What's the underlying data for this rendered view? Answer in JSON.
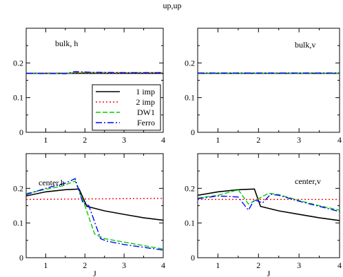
{
  "figure": {
    "title": "up,up"
  },
  "chart_data": [
    {
      "type": "line",
      "annotation": "bulk, h",
      "xlabel": "",
      "ylabel": "",
      "xlim": [
        0.5,
        4
      ],
      "ylim": [
        0,
        0.3
      ],
      "xticks": [
        1,
        2,
        3,
        4
      ],
      "yticks": [
        0,
        0.1,
        0.2
      ],
      "legend": {
        "placement": "lower-right",
        "entries": [
          "1 imp",
          "2 imp",
          "DW1",
          "Ferro"
        ]
      },
      "series": [
        {
          "name": "1 imp",
          "color": "#000000",
          "dash": "solid",
          "x": [
            0.5,
            4.0
          ],
          "y": [
            0.17,
            0.17
          ]
        },
        {
          "name": "2 imp",
          "color": "#ff0000",
          "dash": "dotted",
          "x": [
            0.5,
            4.0
          ],
          "y": [
            0.17,
            0.17
          ]
        },
        {
          "name": "DW1",
          "color": "#00cc00",
          "dash": "dashed",
          "x": [
            0.5,
            1.5,
            1.8,
            2.2,
            3.0,
            4.0
          ],
          "y": [
            0.17,
            0.169,
            0.173,
            0.172,
            0.172,
            0.172
          ]
        },
        {
          "name": "Ferro",
          "color": "#0000ff",
          "dash": "dashdot",
          "x": [
            0.5,
            1.5,
            1.75,
            2.2,
            3.0,
            4.0
          ],
          "y": [
            0.17,
            0.169,
            0.175,
            0.173,
            0.172,
            0.172
          ]
        }
      ]
    },
    {
      "type": "line",
      "annotation": "bulk,v",
      "xlabel": "",
      "ylabel": "",
      "xlim": [
        0.5,
        4
      ],
      "ylim": [
        0,
        0.3
      ],
      "xticks": [
        1,
        2,
        3,
        4
      ],
      "yticks": [
        0,
        0.1,
        0.2
      ],
      "series": [
        {
          "name": "1 imp",
          "color": "#000000",
          "dash": "solid",
          "x": [
            0.5,
            4.0
          ],
          "y": [
            0.17,
            0.17
          ]
        },
        {
          "name": "2 imp",
          "color": "#ff0000",
          "dash": "dotted",
          "x": [
            0.5,
            4.0
          ],
          "y": [
            0.17,
            0.17
          ]
        },
        {
          "name": "DW1",
          "color": "#00cc00",
          "dash": "dashed",
          "x": [
            0.5,
            4.0
          ],
          "y": [
            0.17,
            0.17
          ]
        },
        {
          "name": "Ferro",
          "color": "#0000ff",
          "dash": "dashdot",
          "x": [
            0.5,
            4.0
          ],
          "y": [
            0.171,
            0.171
          ]
        }
      ]
    },
    {
      "type": "line",
      "annotation": "center,h",
      "xlabel": "J",
      "ylabel": "",
      "xlim": [
        0.5,
        4
      ],
      "ylim": [
        0,
        0.3
      ],
      "xticks": [
        1,
        2,
        3,
        4
      ],
      "yticks": [
        0,
        0.1,
        0.2
      ],
      "series": [
        {
          "name": "1 imp",
          "color": "#000000",
          "dash": "solid",
          "x": [
            0.5,
            1.0,
            1.5,
            1.85,
            2.05,
            2.5,
            3.0,
            3.5,
            4.0
          ],
          "y": [
            0.178,
            0.19,
            0.196,
            0.198,
            0.148,
            0.135,
            0.125,
            0.115,
            0.108
          ]
        },
        {
          "name": "2 imp",
          "color": "#ff0000",
          "dash": "dotted",
          "x": [
            0.5,
            4.0
          ],
          "y": [
            0.168,
            0.171
          ]
        },
        {
          "name": "DW1",
          "color": "#00cc00",
          "dash": "dashed",
          "x": [
            0.5,
            1.0,
            1.4,
            1.75,
            2.0,
            2.25,
            2.5,
            3.0,
            3.5,
            4.0
          ],
          "y": [
            0.185,
            0.197,
            0.206,
            0.221,
            0.15,
            0.068,
            0.055,
            0.045,
            0.035,
            0.025
          ]
        },
        {
          "name": "Ferro",
          "color": "#0000ff",
          "dash": "dashdot",
          "x": [
            0.5,
            1.0,
            1.5,
            1.75,
            1.95,
            2.1,
            2.4,
            2.55,
            3.0,
            3.5,
            4.0
          ],
          "y": [
            0.182,
            0.2,
            0.215,
            0.228,
            0.158,
            0.15,
            0.055,
            0.048,
            0.038,
            0.03,
            0.022
          ]
        }
      ]
    },
    {
      "type": "line",
      "annotation": "center,v",
      "xlabel": "J",
      "ylabel": "",
      "xlim": [
        0.5,
        4
      ],
      "ylim": [
        0,
        0.3
      ],
      "xticks": [
        1,
        2,
        3,
        4
      ],
      "yticks": [
        0,
        0.1,
        0.2
      ],
      "series": [
        {
          "name": "1 imp",
          "color": "#000000",
          "dash": "solid",
          "x": [
            0.5,
            1.0,
            1.5,
            1.9,
            2.05,
            2.5,
            3.0,
            3.5,
            4.0
          ],
          "y": [
            0.18,
            0.19,
            0.196,
            0.198,
            0.148,
            0.135,
            0.125,
            0.115,
            0.107
          ]
        },
        {
          "name": "2 imp",
          "color": "#ff0000",
          "dash": "dotted",
          "x": [
            0.5,
            4.0
          ],
          "y": [
            0.168,
            0.168
          ]
        },
        {
          "name": "DW1",
          "color": "#00cc00",
          "dash": "dashed",
          "x": [
            0.5,
            1.0,
            1.5,
            1.75,
            2.0,
            2.25,
            2.5,
            3.0,
            3.5,
            4.0
          ],
          "y": [
            0.172,
            0.18,
            0.196,
            0.155,
            0.17,
            0.186,
            0.182,
            0.165,
            0.15,
            0.137
          ]
        },
        {
          "name": "Ferro",
          "color": "#0000ff",
          "dash": "dashdot",
          "x": [
            0.5,
            1.0,
            1.5,
            1.75,
            1.9,
            2.1,
            2.3,
            2.5,
            3.0,
            3.5,
            4.0
          ],
          "y": [
            0.17,
            0.178,
            0.175,
            0.137,
            0.167,
            0.158,
            0.183,
            0.18,
            0.163,
            0.148,
            0.133
          ]
        }
      ]
    }
  ]
}
